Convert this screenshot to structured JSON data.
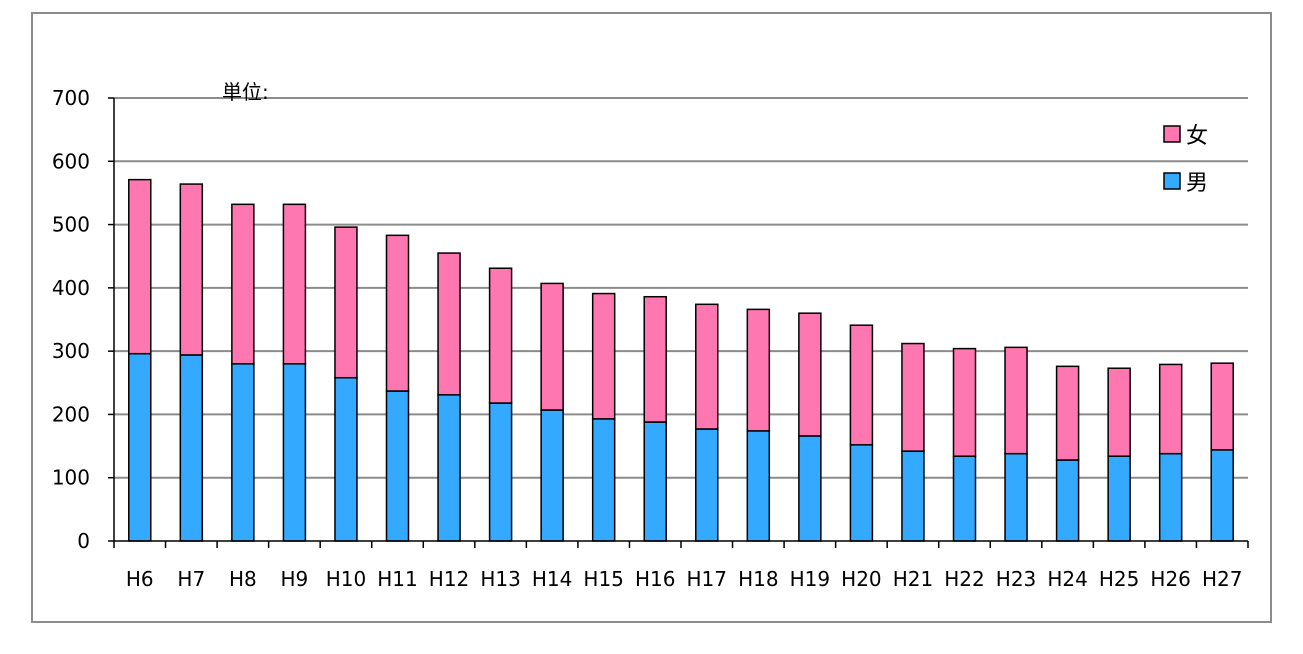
{
  "chart_data": {
    "type": "bar",
    "stacked": true,
    "unit_label": "単位:",
    "categories": [
      "H6",
      "H7",
      "H8",
      "H9",
      "H10",
      "H11",
      "H12",
      "H13",
      "H14",
      "H15",
      "H16",
      "H17",
      "H18",
      "H19",
      "H20",
      "H21",
      "H22",
      "H23",
      "H24",
      "H25",
      "H26",
      "H27"
    ],
    "series": [
      {
        "name": "男",
        "color": "#33aaff",
        "values": [
          296,
          294,
          280,
          280,
          258,
          237,
          231,
          218,
          207,
          193,
          188,
          177,
          174,
          166,
          152,
          142,
          134,
          138,
          128,
          134,
          138,
          144
        ]
      },
      {
        "name": "女",
        "color": "#ff77b0",
        "values": [
          275,
          270,
          252,
          252,
          238,
          246,
          224,
          213,
          200,
          198,
          198,
          197,
          192,
          194,
          189,
          170,
          170,
          168,
          148,
          139,
          141,
          137
        ]
      }
    ],
    "ylim": [
      0,
      700
    ],
    "yticks": [
      0,
      100,
      200,
      300,
      400,
      500,
      600,
      700
    ],
    "grid": true,
    "legend_position": "top-right",
    "legend_order": [
      "女",
      "男"
    ]
  }
}
